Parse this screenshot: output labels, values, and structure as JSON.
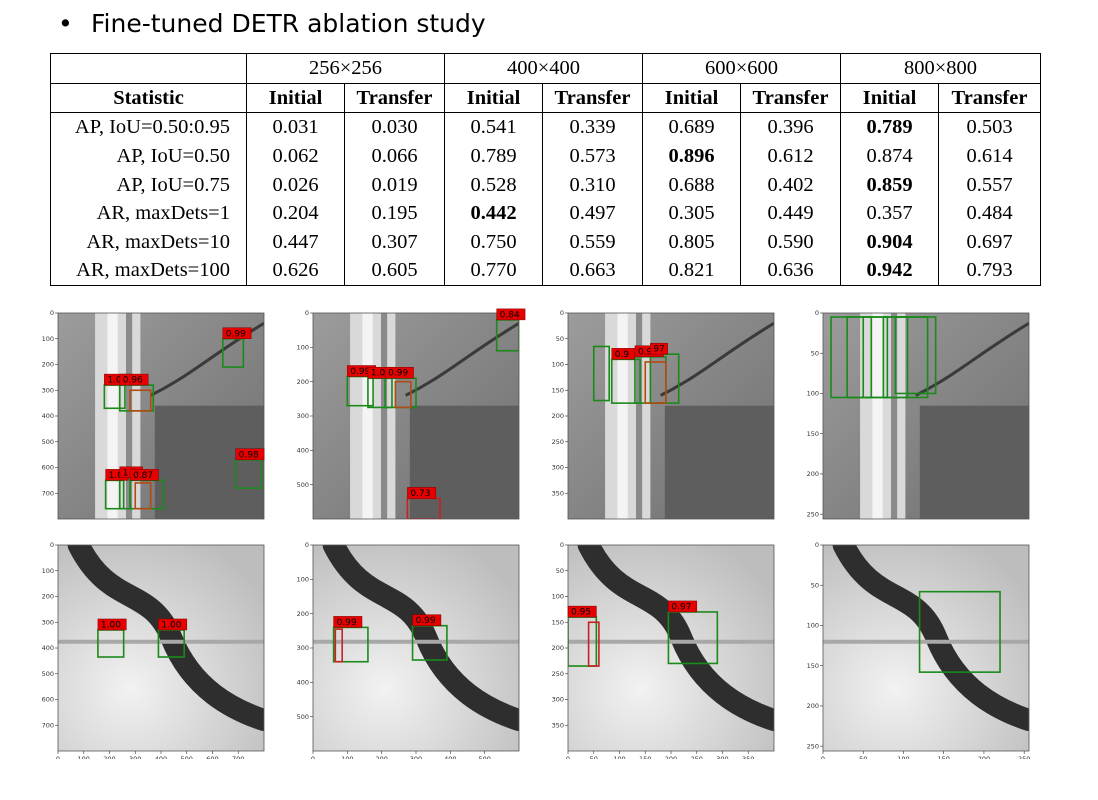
{
  "slide": {
    "title": "Fine-tuned DETR ablation study"
  },
  "table": {
    "resolutions": [
      "256×256",
      "400×400",
      "600×600",
      "800×800"
    ],
    "stat_header": "Statistic",
    "subheaders": [
      "Initial",
      "Transfer",
      "Initial",
      "Transfer",
      "Initial",
      "Transfer",
      "Initial",
      "Transfer"
    ],
    "rows": [
      {
        "label": "AP, IoU=0.50:0.95",
        "values": [
          "0.031",
          "0.030",
          "0.541",
          "0.339",
          "0.689",
          "0.396",
          "0.789",
          "0.503"
        ],
        "bold_index": 6
      },
      {
        "label": "AP, IoU=0.50",
        "values": [
          "0.062",
          "0.066",
          "0.789",
          "0.573",
          "0.896",
          "0.612",
          "0.874",
          "0.614"
        ],
        "bold_index": 4
      },
      {
        "label": "AP, IoU=0.75",
        "values": [
          "0.026",
          "0.019",
          "0.528",
          "0.310",
          "0.688",
          "0.402",
          "0.859",
          "0.557"
        ],
        "bold_index": 6
      },
      {
        "label": "AR, maxDets=1",
        "values": [
          "0.204",
          "0.195",
          "0.442",
          "0.497",
          "0.305",
          "0.449",
          "0.357",
          "0.484"
        ],
        "bold_index": 2
      },
      {
        "label": "AR, maxDets=10",
        "values": [
          "0.447",
          "0.307",
          "0.750",
          "0.559",
          "0.805",
          "0.590",
          "0.904",
          "0.697"
        ],
        "bold_index": 6
      },
      {
        "label": "AR, maxDets=100",
        "values": [
          "0.626",
          "0.605",
          "0.770",
          "0.663",
          "0.821",
          "0.636",
          "0.942",
          "0.793"
        ],
        "bold_index": 6
      }
    ]
  },
  "panels": [
    {
      "name": "top-256",
      "image_size": 800,
      "scene": "roads",
      "x_ticks": [],
      "y_ticks": [
        0,
        100,
        200,
        300,
        400,
        500,
        600,
        700
      ],
      "detections": [
        {
          "box": [
            640,
            100,
            720,
            210
          ],
          "score": "0.99",
          "color": "#1a8a1a"
        },
        {
          "box": [
            180,
            280,
            260,
            370
          ],
          "score": "1.00",
          "color": "#1a8a1a"
        },
        {
          "box": [
            240,
            280,
            370,
            380
          ],
          "score": "0.96",
          "color": "#1a8a1a"
        },
        {
          "box": [
            280,
            300,
            360,
            380
          ],
          "score": "",
          "color": "#b34a12"
        },
        {
          "box": [
            690,
            570,
            790,
            680
          ],
          "score": "0.98",
          "color": "#1a8a1a"
        },
        {
          "box": [
            185,
            650,
            255,
            760
          ],
          "score": "1.0",
          "color": "#1a8a1a"
        },
        {
          "box": [
            240,
            640,
            280,
            760
          ],
          "score": "1.0",
          "color": "#1a8a1a"
        },
        {
          "box": [
            280,
            650,
            410,
            760
          ],
          "score": "0.87",
          "color": "#1a8a1a"
        },
        {
          "box": [
            300,
            660,
            360,
            760
          ],
          "score": "",
          "color": "#b34a12"
        }
      ]
    },
    {
      "name": "top-400",
      "image_size": 600,
      "scene": "roads",
      "x_ticks": [],
      "y_ticks": [
        0,
        100,
        200,
        300,
        400,
        500
      ],
      "detections": [
        {
          "box": [
            535,
            20,
            600,
            110
          ],
          "score": "0.84",
          "color": "#1a8a1a"
        },
        {
          "box": [
            100,
            185,
            175,
            270
          ],
          "score": "0.99",
          "color": "#1a8a1a"
        },
        {
          "box": [
            160,
            190,
            230,
            275
          ],
          "score": "1.00",
          "color": "#1a8a1a"
        },
        {
          "box": [
            210,
            190,
            300,
            275
          ],
          "score": "0.99",
          "color": "#1a8a1a"
        },
        {
          "box": [
            240,
            200,
            285,
            275
          ],
          "score": "",
          "color": "#b34a12"
        },
        {
          "box": [
            275,
            540,
            370,
            600
          ],
          "score": "0.73",
          "color": "#cc1f1f"
        }
      ]
    },
    {
      "name": "top-600",
      "image_size": 400,
      "scene": "roads",
      "x_ticks": [],
      "y_ticks": [
        0,
        50,
        100,
        150,
        200,
        250,
        300,
        350
      ],
      "detections": [
        {
          "box": [
            50,
            65,
            80,
            170
          ],
          "score": "",
          "color": "#1a8a1a"
        },
        {
          "box": [
            85,
            90,
            140,
            175
          ],
          "score": "0.9",
          "color": "#1a8a1a"
        },
        {
          "box": [
            130,
            85,
            190,
            175
          ],
          "score": "0.99",
          "color": "#1a8a1a"
        },
        {
          "box": [
            160,
            80,
            215,
            175
          ],
          "score": "97",
          "color": "#1a8a1a"
        },
        {
          "box": [
            150,
            95,
            190,
            175
          ],
          "score": "",
          "color": "#b34a12"
        }
      ]
    },
    {
      "name": "top-800",
      "image_size": 256,
      "scene": "roads",
      "x_ticks": [],
      "y_ticks": [
        0,
        50,
        100,
        150,
        200,
        250
      ],
      "detections": [
        {
          "box": [
            10,
            5,
            60,
            105
          ],
          "score": "",
          "color": "#1a8a1a"
        },
        {
          "box": [
            30,
            5,
            80,
            105
          ],
          "score": "",
          "color": "#1a8a1a"
        },
        {
          "box": [
            50,
            5,
            105,
            105
          ],
          "score": "",
          "color": "#1a8a1a"
        },
        {
          "box": [
            75,
            5,
            130,
            105
          ],
          "score": "",
          "color": "#1a8a1a"
        },
        {
          "box": [
            90,
            5,
            140,
            100
          ],
          "score": "",
          "color": "#1a8a1a"
        }
      ]
    },
    {
      "name": "bottom-256",
      "image_size": 800,
      "scene": "river",
      "x_ticks": [
        0,
        100,
        200,
        300,
        400,
        500,
        600,
        700
      ],
      "y_ticks": [
        0,
        100,
        200,
        300,
        400,
        500,
        600,
        700
      ],
      "detections": [
        {
          "box": [
            155,
            330,
            255,
            435
          ],
          "score": "1.00",
          "color": "#1a8a1a"
        },
        {
          "box": [
            390,
            330,
            490,
            435
          ],
          "score": "1.00",
          "color": "#1a8a1a"
        }
      ]
    },
    {
      "name": "bottom-400",
      "image_size": 600,
      "scene": "river",
      "x_ticks": [
        0,
        100,
        200,
        300,
        400,
        500
      ],
      "y_ticks": [
        0,
        100,
        200,
        300,
        400,
        500
      ],
      "detections": [
        {
          "box": [
            60,
            240,
            160,
            340
          ],
          "score": "0.99",
          "color": "#1a8a1a"
        },
        {
          "box": [
            290,
            235,
            390,
            335
          ],
          "score": "0.99",
          "color": "#1a8a1a"
        },
        {
          "box": [
            65,
            245,
            85,
            340
          ],
          "score": "",
          "color": "#cc1f1f"
        }
      ]
    },
    {
      "name": "bottom-600",
      "image_size": 400,
      "scene": "river",
      "x_ticks": [
        0,
        50,
        100,
        150,
        200,
        250,
        300,
        350
      ],
      "y_ticks": [
        0,
        50,
        100,
        150,
        200,
        250,
        300,
        350
      ],
      "detections": [
        {
          "box": [
            0,
            140,
            55,
            235
          ],
          "score": "0.95",
          "color": "#1a8a1a"
        },
        {
          "box": [
            195,
            130,
            290,
            230
          ],
          "score": "0.97",
          "color": "#1a8a1a"
        },
        {
          "box": [
            40,
            150,
            60,
            235
          ],
          "score": "",
          "color": "#cc1f1f"
        }
      ]
    },
    {
      "name": "bottom-800",
      "image_size": 256,
      "scene": "river",
      "x_ticks": [
        0,
        50,
        100,
        150,
        200,
        250
      ],
      "y_ticks": [
        0,
        50,
        100,
        150,
        200,
        250
      ],
      "detections": [
        {
          "box": [
            120,
            58,
            220,
            158
          ],
          "score": "",
          "color": "#1a8a1a"
        }
      ]
    }
  ]
}
